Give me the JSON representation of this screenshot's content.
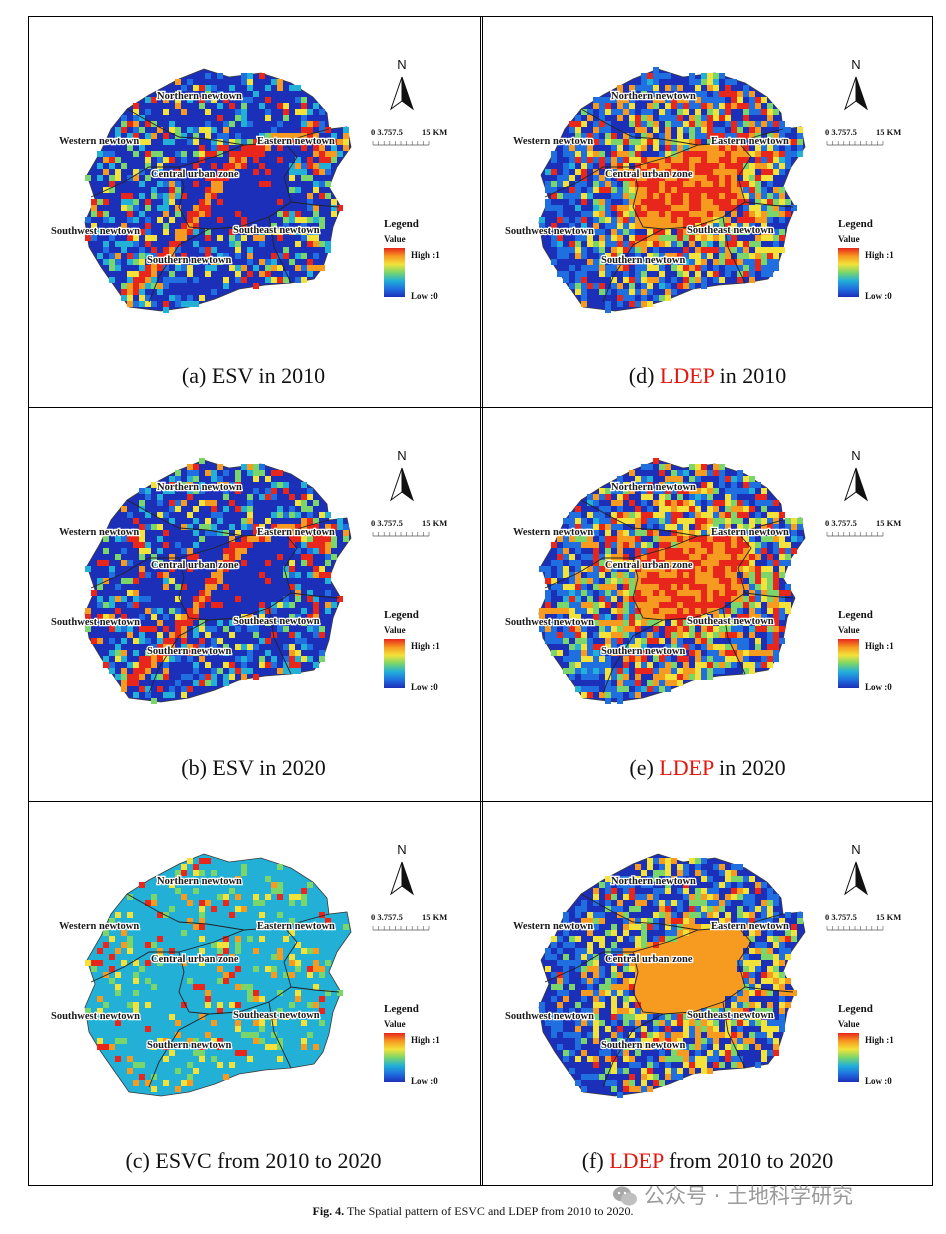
{
  "figure_caption": {
    "label": "Fig. 4.",
    "text": "The Spatial pattern of ESVC and LDEP from 2010 to 2020."
  },
  "watermark": "公众号 · 土地科学研究",
  "common": {
    "north": "N",
    "scale_ticks": "0 3.757.5",
    "scale_end": "15 KM",
    "legend_title": "Legend",
    "legend_value": "Value",
    "legend_high": "High :1",
    "legend_low": "Low :0",
    "zones": {
      "northern": "Northern newtown",
      "western": "Western newtown",
      "eastern": "Eastern newtown",
      "central": "Central urban zone",
      "southwest": "Southwest newtown",
      "southeast": "Southeast newtown",
      "southern": "Southern newtown"
    }
  },
  "panels": [
    {
      "id": "a",
      "caption_pre": "(a) ",
      "caption_red": "",
      "caption_main": "ESV",
      "caption_post": " in 2010",
      "type": "esv"
    },
    {
      "id": "b",
      "caption_pre": "(b) ",
      "caption_red": "",
      "caption_main": "ESV",
      "caption_post": " in 2020",
      "type": "esv"
    },
    {
      "id": "c",
      "caption_pre": "(c) ",
      "caption_red": "",
      "caption_main": "ESVC",
      "caption_post": " from 2010 to 2020",
      "type": "esvc"
    },
    {
      "id": "d",
      "caption_pre": "(d) ",
      "caption_red": "LDEP",
      "caption_main": "",
      "caption_post": " in 2010",
      "type": "ldep"
    },
    {
      "id": "e",
      "caption_pre": "(e) ",
      "caption_red": "LDEP",
      "caption_main": "",
      "caption_post": " in 2020",
      "type": "ldep2"
    },
    {
      "id": "f",
      "caption_pre": "(f) ",
      "caption_red": "LDEP",
      "caption_main": "",
      "caption_post": " from 2010 to 2020",
      "type": "ldepc"
    }
  ],
  "colors": {
    "ramp": [
      "#1c2fb8",
      "#1f6fe0",
      "#22b0d6",
      "#7ad66a",
      "#f2e23a",
      "#f79a20",
      "#e8261c"
    ],
    "caption_red": "#e3170d"
  }
}
